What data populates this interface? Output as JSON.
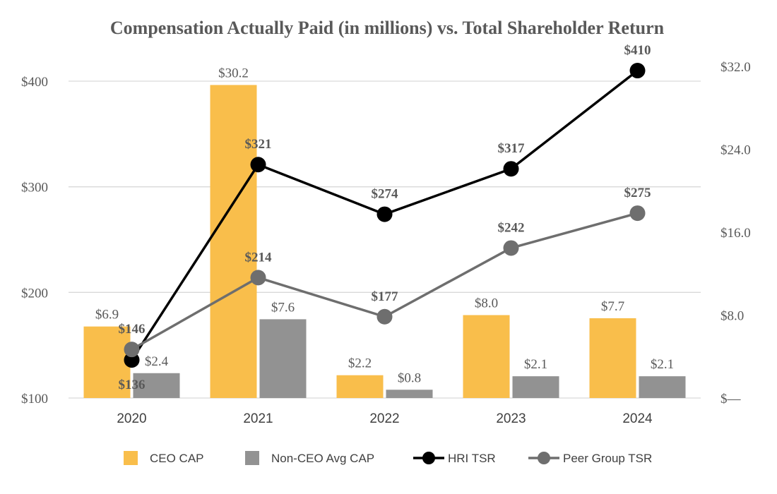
{
  "chart_data": {
    "type": "bar+line",
    "title": "Compensation Actually Paid (in millions) vs. Total Shareholder Return",
    "categories": [
      "2020",
      "2021",
      "2022",
      "2023",
      "2024"
    ],
    "left_axis": {
      "ylim": [
        100,
        400
      ],
      "ticks": [
        100,
        200,
        300,
        400
      ],
      "tick_labels": [
        "$100",
        "$200",
        "$300",
        "$400"
      ]
    },
    "right_axis": {
      "ylim": [
        0,
        32
      ],
      "ticks": [
        0,
        8,
        16,
        24,
        32
      ],
      "tick_labels": [
        "$—",
        "$8.0",
        "$16.0",
        "$24.0",
        "$32.0"
      ]
    },
    "bar_series": [
      {
        "name": "CEO CAP",
        "color": "#F9BE4B",
        "axis": "right",
        "values": [
          6.9,
          30.2,
          2.2,
          8.0,
          7.7
        ],
        "labels": [
          "$6.9",
          "$30.2",
          "$2.2",
          "$8.0",
          "$7.7"
        ]
      },
      {
        "name": "Non-CEO Avg CAP",
        "color": "#929292",
        "axis": "right",
        "values": [
          2.4,
          7.6,
          0.8,
          2.1,
          2.1
        ],
        "labels": [
          "$2.4",
          "$7.6",
          "$0.8",
          "$2.1",
          "$2.1"
        ]
      }
    ],
    "line_series": [
      {
        "name": "HRI TSR",
        "color": "#000000",
        "axis": "left",
        "values": [
          136,
          321,
          274,
          317,
          410
        ],
        "labels": [
          "$136",
          "$321",
          "$274",
          "$317",
          "$410"
        ]
      },
      {
        "name": "Peer Group TSR",
        "color": "#6E6E6E",
        "axis": "left",
        "values": [
          146,
          214,
          177,
          242,
          275
        ],
        "labels": [
          "$146",
          "$214",
          "$177",
          "$242",
          "$275"
        ]
      }
    ],
    "legend": {
      "position": "bottom",
      "items": [
        "CEO CAP",
        "Non-CEO Avg CAP",
        "HRI TSR",
        "Peer Group TSR"
      ]
    },
    "grid": true
  }
}
